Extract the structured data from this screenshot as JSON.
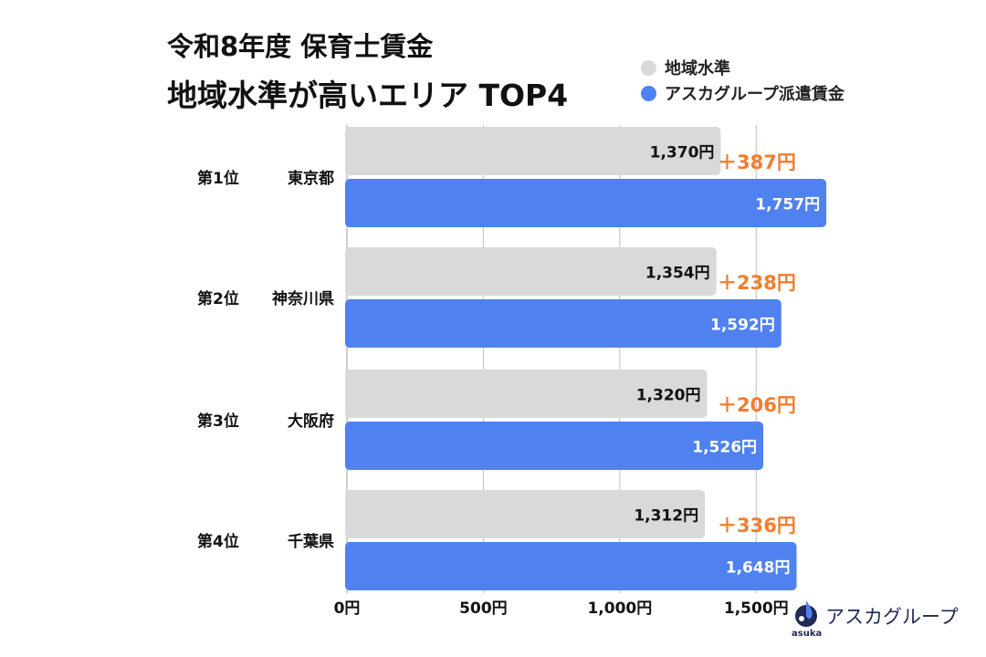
{
  "colors": {
    "regional": "#d9d9d9",
    "asuka": "#4f81f0",
    "diff": "#f07e2f",
    "axis": "#bfbfbf",
    "text": "#111111"
  },
  "chart_data": {
    "type": "bar",
    "orientation": "horizontal",
    "title": "令和8年度 保育士賃金",
    "subtitle": "地域水準が高いエリア TOP4",
    "categories": [
      {
        "rank": "第1位",
        "name": "東京都"
      },
      {
        "rank": "第2位",
        "name": "神奈川県"
      },
      {
        "rank": "第3位",
        "name": "大阪府"
      },
      {
        "rank": "第4位",
        "name": "千葉県"
      }
    ],
    "series": [
      {
        "name": "地域水準",
        "color_key": "regional",
        "values": [
          1370,
          1354,
          1320,
          1312
        ],
        "labels": [
          "1,370円",
          "1,354円",
          "1,320円",
          "1,312円"
        ]
      },
      {
        "name": "アスカグループ派遣賃金",
        "color_key": "asuka",
        "values": [
          1757,
          1592,
          1526,
          1648
        ],
        "labels": [
          "1,757円",
          "1,592円",
          "1,526円",
          "1,648円"
        ]
      }
    ],
    "differences": [
      "＋387円",
      "＋238円",
      "＋206円",
      "＋336円"
    ],
    "xlim": [
      0,
      1750
    ],
    "xticks": [
      {
        "value": 0,
        "label": "0円"
      },
      {
        "value": 500,
        "label": "500円"
      },
      {
        "value": 1000,
        "label": "1,000円"
      },
      {
        "value": 1500,
        "label": "1,500円"
      }
    ],
    "grid": true,
    "legend": "top-right"
  },
  "logo": {
    "text": "アスカグループ",
    "sub": "asuka"
  }
}
